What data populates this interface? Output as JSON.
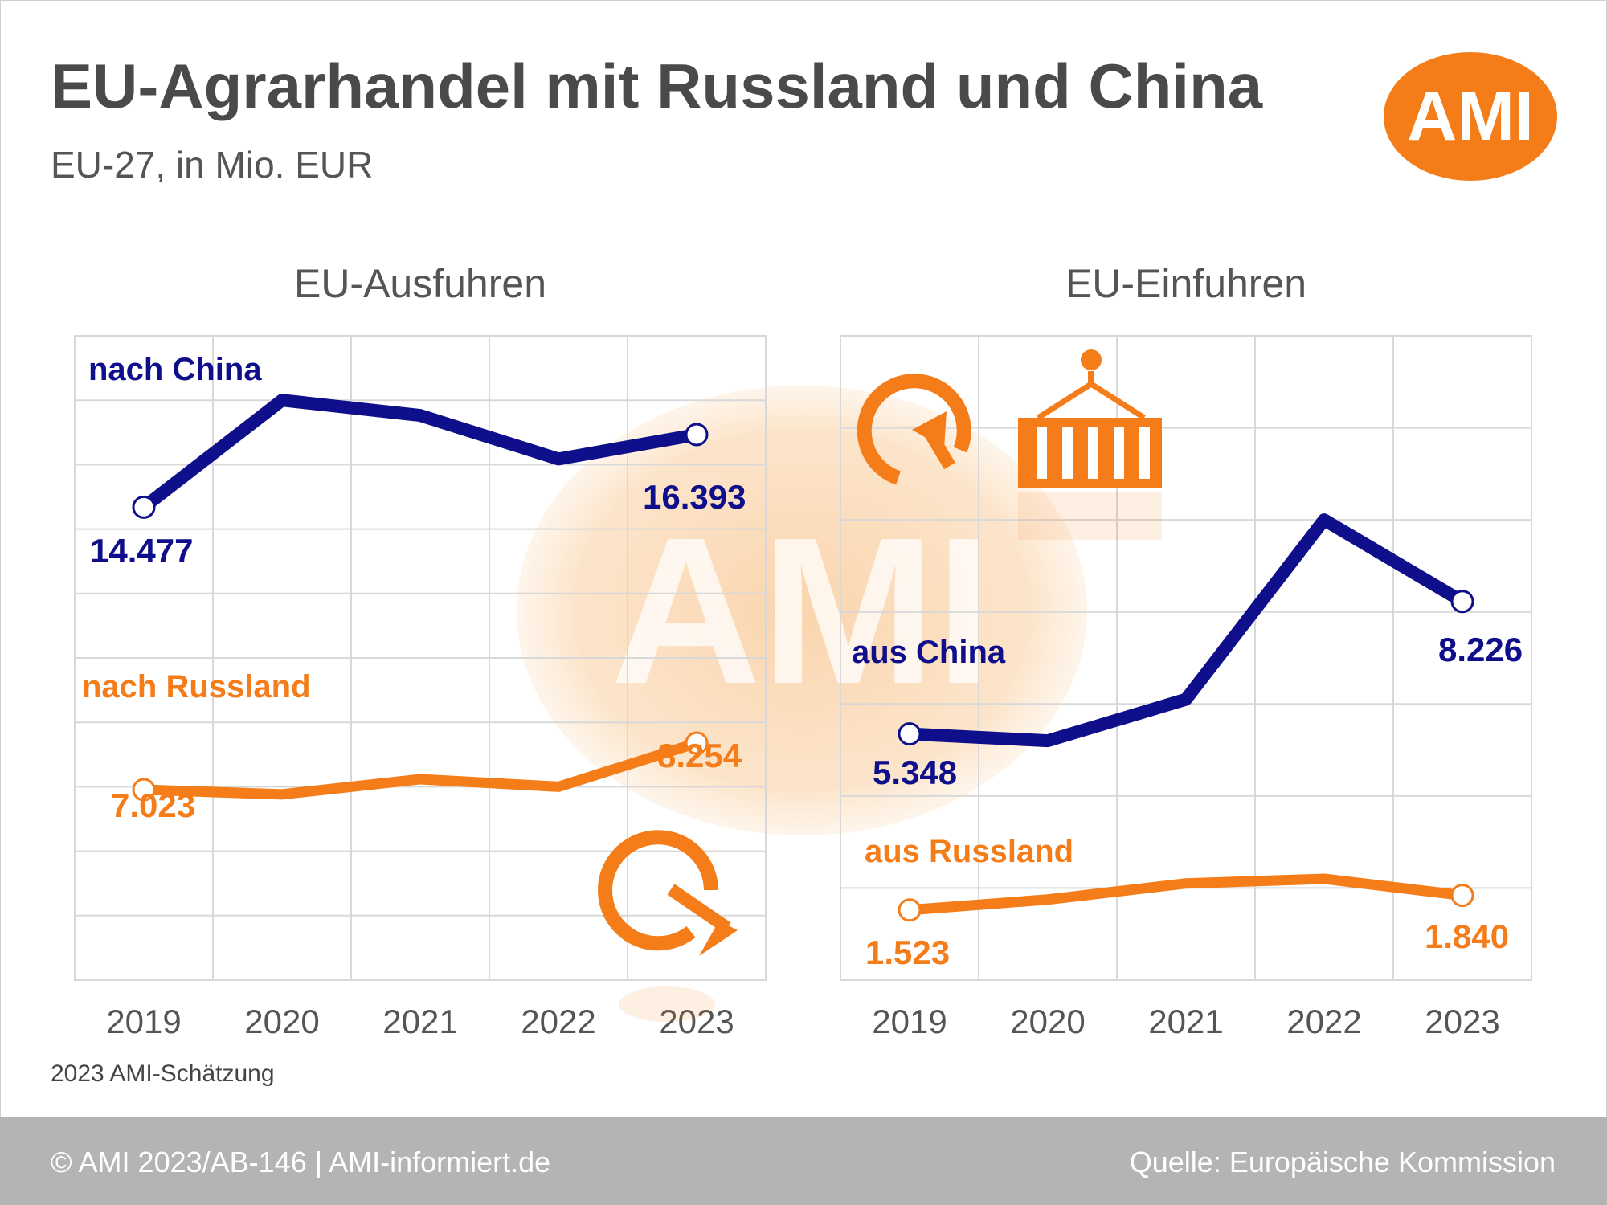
{
  "header": {
    "title": "EU-Agrarhandel mit Russland und China",
    "subtitle": "EU-27, in Mio. EUR",
    "logo_text": "AMI",
    "logo_color": "#f47d1a"
  },
  "colors": {
    "china": "#0f0f8c",
    "russia": "#f47d1a",
    "grid": "#d8d8d8"
  },
  "note": "2023 AMI-Schätzung",
  "footer": {
    "left": "© AMI 2023/AB-146 | AMI-informiert.de",
    "right": "Quelle: Europäische Kommission"
  },
  "chart_data": [
    {
      "type": "line",
      "title": "EU-Ausfuhren",
      "categories": [
        "2019",
        "2020",
        "2021",
        "2022",
        "2023"
      ],
      "ylim": [
        2000,
        19000
      ],
      "series": [
        {
          "name": "nach China",
          "values": [
            14477,
            17300,
            16900,
            15750,
            16393
          ],
          "start_label": "14.477",
          "end_label": "16.393"
        },
        {
          "name": "nach Russland",
          "values": [
            7023,
            6900,
            7300,
            7100,
            8254
          ],
          "start_label": "7.023",
          "end_label": "8.254"
        }
      ]
    },
    {
      "type": "line",
      "title": "EU-Einfuhren",
      "categories": [
        "2019",
        "2020",
        "2021",
        "2022",
        "2023"
      ],
      "ylim": [
        0,
        14000
      ],
      "series": [
        {
          "name": "aus China",
          "values": [
            5348,
            5200,
            6100,
            10000,
            8226
          ],
          "start_label": "5.348",
          "end_label": "8.226"
        },
        {
          "name": "aus Russland",
          "values": [
            1523,
            1750,
            2100,
            2200,
            1840
          ],
          "start_label": "1.523",
          "end_label": "1.840"
        }
      ]
    }
  ]
}
